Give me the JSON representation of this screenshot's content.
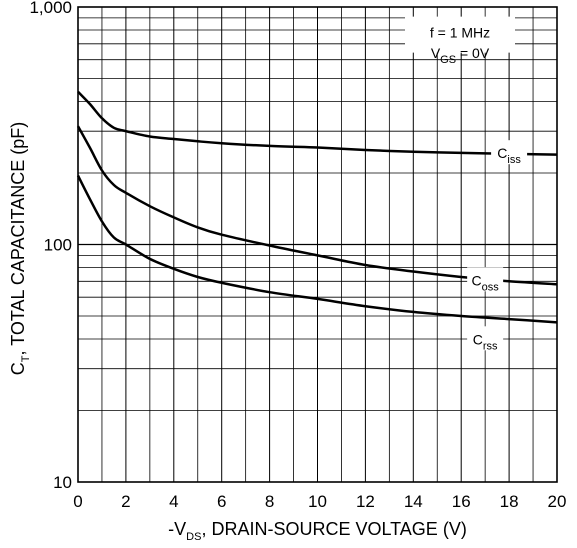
{
  "chart_data": {
    "type": "line",
    "xlabel": {
      "prefix": "-V",
      "sub": "DS",
      "suffix": ", DRAIN-SOURCE VOLTAGE (V)"
    },
    "ylabel": {
      "prefix": "C",
      "sub": "T",
      "suffix": ", TOTAL CAPACITANCE (pF)"
    },
    "xlim": [
      0,
      20
    ],
    "ylim": [
      10,
      1000
    ],
    "yscale": "log",
    "grid": true,
    "x_ticks": [
      "0",
      "2",
      "4",
      "6",
      "8",
      "10",
      "12",
      "14",
      "16",
      "18",
      "20"
    ],
    "y_ticks": [
      {
        "value": 10,
        "label": "10"
      },
      {
        "value": 100,
        "label": "100"
      },
      {
        "value": 1000,
        "label": "1,000"
      }
    ],
    "conditions": [
      {
        "prefix": "f = 1 MHz",
        "sub": "",
        "suffix": ""
      },
      {
        "prefix": "V",
        "sub": "GS",
        "suffix": " = 0V"
      }
    ],
    "series": [
      {
        "name": "Ciss",
        "label_main": "C",
        "label_sub": "iss",
        "label_at": {
          "x": 18,
          "y": 240
        },
        "x": [
          0,
          0.5,
          1,
          1.5,
          2,
          3,
          4,
          5,
          6,
          8,
          10,
          12,
          14,
          16,
          18,
          20
        ],
        "values": [
          440,
          390,
          340,
          310,
          300,
          285,
          278,
          272,
          267,
          260,
          256,
          250,
          246,
          243,
          241,
          239
        ]
      },
      {
        "name": "Coss",
        "label_main": "C",
        "label_sub": "oss",
        "label_at": {
          "x": 17,
          "y": 70
        },
        "x": [
          0,
          0.5,
          1,
          1.5,
          2,
          3,
          4,
          5,
          6,
          8,
          10,
          12,
          14,
          16,
          18,
          20
        ],
        "values": [
          315,
          255,
          205,
          178,
          165,
          145,
          130,
          118,
          110,
          99,
          90,
          82,
          77,
          73,
          70,
          68
        ]
      },
      {
        "name": "Crss",
        "label_main": "C",
        "label_sub": "rss",
        "label_at": {
          "x": 17,
          "y": 39.5
        },
        "x": [
          0,
          0.5,
          1,
          1.5,
          2,
          3,
          4,
          5,
          6,
          8,
          10,
          12,
          14,
          16,
          18,
          20
        ],
        "values": [
          195,
          155,
          125,
          107,
          100,
          87,
          79,
          73,
          69,
          63,
          59,
          55,
          52,
          50,
          48.5,
          47
        ]
      }
    ]
  }
}
